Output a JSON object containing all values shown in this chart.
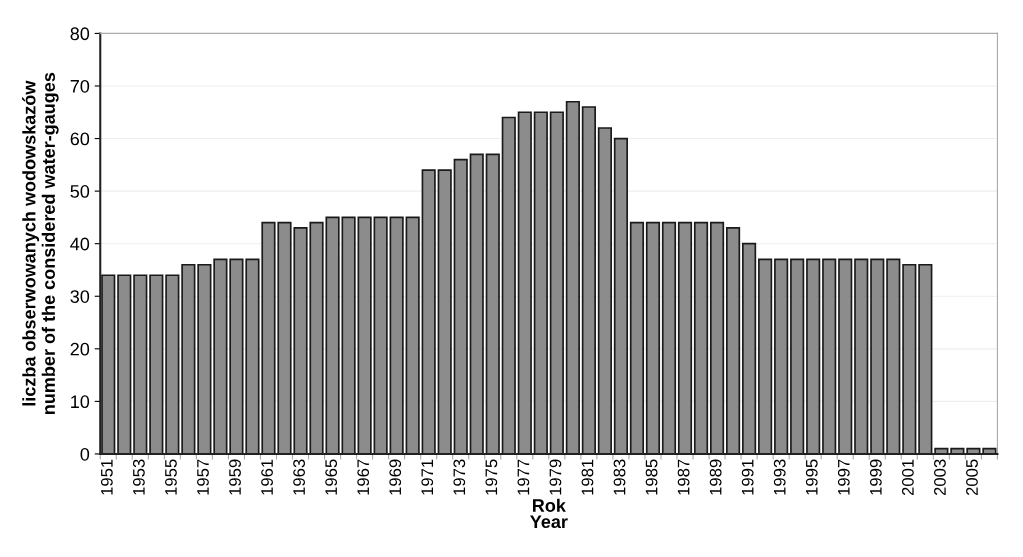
{
  "chart_data": {
    "type": "bar",
    "xlabel": "Rok\nYear",
    "ylabel": "liczba obserwowanych wodowskazów\nnumber of the considered water-gauges",
    "categories": [
      "1951",
      null,
      "1953",
      null,
      "1955",
      null,
      "1957",
      null,
      "1959",
      null,
      "1961",
      null,
      "1963",
      null,
      "1965",
      null,
      "1967",
      null,
      "1969",
      null,
      "1971",
      null,
      "1973",
      null,
      "1975",
      null,
      "1977",
      null,
      "1979",
      null,
      "1981",
      null,
      "1983",
      null,
      "1985",
      null,
      "1987",
      null,
      "1989",
      null,
      "1991",
      null,
      "1993",
      null,
      "1995",
      null,
      "1997",
      null,
      "1999",
      null,
      "2001",
      null,
      "2003",
      null,
      "2005",
      null
    ],
    "values": [
      34,
      34,
      34,
      34,
      34,
      36,
      36,
      37,
      37,
      37,
      44,
      44,
      43,
      44,
      45,
      45,
      45,
      45,
      45,
      45,
      54,
      54,
      56,
      57,
      57,
      64,
      65,
      65,
      65,
      67,
      66,
      62,
      60,
      44,
      44,
      44,
      44,
      44,
      44,
      43,
      40,
      37,
      37,
      37,
      37,
      37,
      37,
      37,
      37,
      37,
      36,
      36,
      1,
      1,
      1,
      1
    ],
    "color": "#8c8c8c",
    "ylim": [
      0,
      80
    ],
    "yticks": [
      0,
      10,
      20,
      30,
      40,
      50,
      60,
      70,
      80
    ],
    "grid": "y"
  }
}
